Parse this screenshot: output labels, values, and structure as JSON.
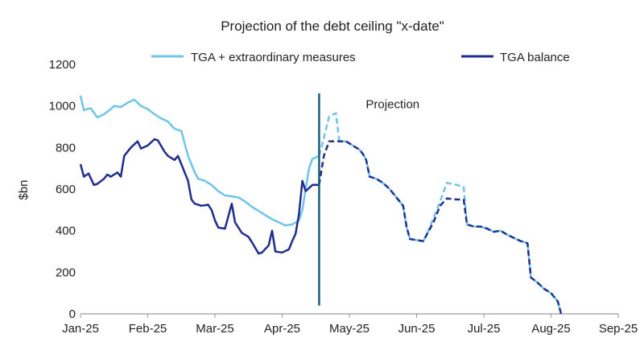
{
  "chart_data": {
    "type": "line",
    "title": "Projection of the debt ceiling \"x-date\"",
    "ylabel": "$bn",
    "xlabel": "",
    "ylim": [
      0,
      1200
    ],
    "yticks": [
      0,
      200,
      400,
      600,
      800,
      1000,
      1200
    ],
    "xlim": [
      0,
      8
    ],
    "xtick_labels": [
      "Jan-25",
      "Feb-25",
      "Mar-25",
      "Apr-25",
      "May-25",
      "Jun-25",
      "Jul-25",
      "Aug-25",
      "Sep-25"
    ],
    "annotation": {
      "label": "Projection",
      "x": 3.55
    },
    "legend_position": "top",
    "grid": false,
    "series": [
      {
        "name": "TGA + extraordinary measures",
        "color": "#6fc4e8",
        "actual": [
          [
            0,
            1050
          ],
          [
            0.05,
            980
          ],
          [
            0.15,
            990
          ],
          [
            0.25,
            945
          ],
          [
            0.35,
            960
          ],
          [
            0.45,
            985
          ],
          [
            0.5,
            1000
          ],
          [
            0.6,
            995
          ],
          [
            0.7,
            1015
          ],
          [
            0.8,
            1030
          ],
          [
            0.9,
            1000
          ],
          [
            1.0,
            985
          ],
          [
            1.1,
            960
          ],
          [
            1.2,
            940
          ],
          [
            1.3,
            925
          ],
          [
            1.4,
            890
          ],
          [
            1.5,
            880
          ],
          [
            1.55,
            820
          ],
          [
            1.6,
            760
          ],
          [
            1.65,
            720
          ],
          [
            1.7,
            680
          ],
          [
            1.75,
            650
          ],
          [
            1.85,
            640
          ],
          [
            1.95,
            620
          ],
          [
            2.05,
            590
          ],
          [
            2.15,
            570
          ],
          [
            2.25,
            565
          ],
          [
            2.35,
            560
          ],
          [
            2.45,
            540
          ],
          [
            2.55,
            515
          ],
          [
            2.65,
            495
          ],
          [
            2.75,
            475
          ],
          [
            2.85,
            455
          ],
          [
            2.95,
            440
          ],
          [
            3.05,
            425
          ],
          [
            3.15,
            430
          ],
          [
            3.25,
            450
          ],
          [
            3.3,
            500
          ],
          [
            3.35,
            600
          ],
          [
            3.4,
            700
          ],
          [
            3.45,
            745
          ],
          [
            3.55,
            760
          ]
        ],
        "projection": [
          [
            3.55,
            760
          ],
          [
            3.6,
            820
          ],
          [
            3.7,
            950
          ],
          [
            3.8,
            965
          ],
          [
            3.85,
            830
          ],
          [
            3.95,
            830
          ],
          [
            4.05,
            810
          ],
          [
            4.15,
            790
          ],
          [
            4.2,
            770
          ],
          [
            4.25,
            740
          ],
          [
            4.3,
            660
          ],
          [
            4.4,
            650
          ],
          [
            4.5,
            630
          ],
          [
            4.6,
            600
          ],
          [
            4.7,
            560
          ],
          [
            4.8,
            520
          ],
          [
            4.85,
            420
          ],
          [
            4.9,
            360
          ],
          [
            5.0,
            355
          ],
          [
            5.1,
            350
          ],
          [
            5.15,
            380
          ],
          [
            5.25,
            460
          ],
          [
            5.35,
            540
          ],
          [
            5.45,
            630
          ],
          [
            5.6,
            620
          ],
          [
            5.7,
            610
          ],
          [
            5.75,
            430
          ],
          [
            5.85,
            420
          ],
          [
            5.95,
            420
          ],
          [
            6.05,
            410
          ],
          [
            6.15,
            395
          ],
          [
            6.25,
            400
          ],
          [
            6.35,
            380
          ],
          [
            6.45,
            365
          ],
          [
            6.55,
            350
          ],
          [
            6.65,
            340
          ],
          [
            6.7,
            175
          ],
          [
            6.8,
            150
          ],
          [
            6.9,
            120
          ],
          [
            7.0,
            100
          ],
          [
            7.1,
            60
          ],
          [
            7.15,
            0
          ]
        ]
      },
      {
        "name": "TGA balance",
        "color": "#1f2e8c",
        "actual": [
          [
            0,
            720
          ],
          [
            0.05,
            660
          ],
          [
            0.12,
            675
          ],
          [
            0.2,
            620
          ],
          [
            0.25,
            625
          ],
          [
            0.35,
            650
          ],
          [
            0.4,
            670
          ],
          [
            0.45,
            660
          ],
          [
            0.55,
            680
          ],
          [
            0.6,
            660
          ],
          [
            0.65,
            760
          ],
          [
            0.75,
            800
          ],
          [
            0.85,
            830
          ],
          [
            0.9,
            795
          ],
          [
            1.0,
            810
          ],
          [
            1.1,
            840
          ],
          [
            1.15,
            835
          ],
          [
            1.25,
            780
          ],
          [
            1.3,
            760
          ],
          [
            1.4,
            740
          ],
          [
            1.45,
            760
          ],
          [
            1.5,
            720
          ],
          [
            1.55,
            680
          ],
          [
            1.6,
            640
          ],
          [
            1.65,
            550
          ],
          [
            1.7,
            530
          ],
          [
            1.8,
            520
          ],
          [
            1.9,
            525
          ],
          [
            1.95,
            500
          ],
          [
            2.0,
            450
          ],
          [
            2.05,
            415
          ],
          [
            2.15,
            410
          ],
          [
            2.25,
            530
          ],
          [
            2.3,
            440
          ],
          [
            2.4,
            390
          ],
          [
            2.5,
            370
          ],
          [
            2.55,
            345
          ],
          [
            2.65,
            290
          ],
          [
            2.7,
            295
          ],
          [
            2.8,
            330
          ],
          [
            2.85,
            400
          ],
          [
            2.9,
            300
          ],
          [
            3.0,
            295
          ],
          [
            3.1,
            310
          ],
          [
            3.15,
            350
          ],
          [
            3.2,
            385
          ],
          [
            3.25,
            480
          ],
          [
            3.3,
            640
          ],
          [
            3.35,
            590
          ],
          [
            3.45,
            620
          ],
          [
            3.55,
            620
          ]
        ],
        "projection": [
          [
            3.55,
            620
          ],
          [
            3.62,
            760
          ],
          [
            3.7,
            830
          ],
          [
            3.8,
            830
          ],
          [
            3.85,
            830
          ],
          [
            3.95,
            830
          ],
          [
            4.05,
            810
          ],
          [
            4.15,
            790
          ],
          [
            4.2,
            770
          ],
          [
            4.25,
            740
          ],
          [
            4.3,
            660
          ],
          [
            4.4,
            650
          ],
          [
            4.5,
            630
          ],
          [
            4.6,
            600
          ],
          [
            4.7,
            560
          ],
          [
            4.8,
            520
          ],
          [
            4.85,
            420
          ],
          [
            4.9,
            360
          ],
          [
            5.0,
            355
          ],
          [
            5.1,
            350
          ],
          [
            5.15,
            380
          ],
          [
            5.25,
            440
          ],
          [
            5.35,
            520
          ],
          [
            5.45,
            555
          ],
          [
            5.6,
            550
          ],
          [
            5.7,
            550
          ],
          [
            5.75,
            430
          ],
          [
            5.85,
            420
          ],
          [
            5.95,
            420
          ],
          [
            6.05,
            410
          ],
          [
            6.15,
            395
          ],
          [
            6.25,
            400
          ],
          [
            6.35,
            380
          ],
          [
            6.45,
            365
          ],
          [
            6.55,
            350
          ],
          [
            6.65,
            340
          ],
          [
            6.7,
            175
          ],
          [
            6.8,
            150
          ],
          [
            6.9,
            120
          ],
          [
            7.0,
            100
          ],
          [
            7.1,
            60
          ],
          [
            7.15,
            0
          ]
        ]
      }
    ]
  }
}
